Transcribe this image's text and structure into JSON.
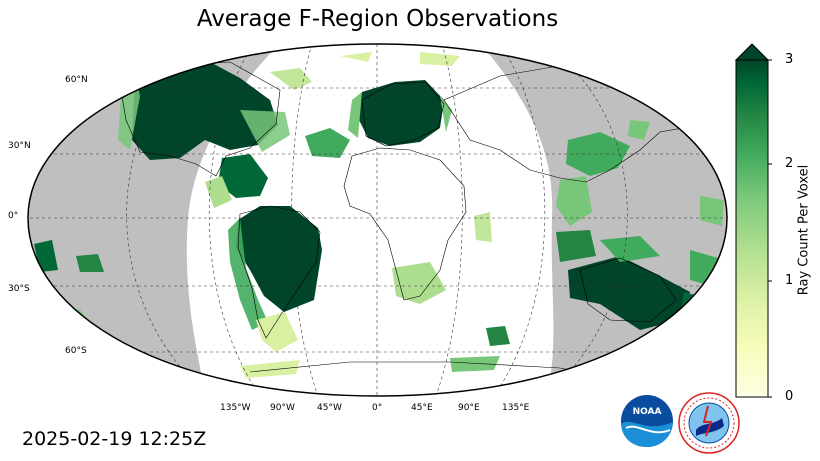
{
  "title": "Average F-Region Observations",
  "timestamp": "2025-02-19 12:25Z",
  "colorbar": {
    "label": "Ray Count Per Voxel",
    "ticks": [
      "0",
      "1",
      "2",
      "3"
    ],
    "min": 0,
    "max": 3,
    "extend": "max",
    "colormap": "YlGn"
  },
  "map": {
    "projection": "Robinson",
    "lat_labels": [
      "60°N",
      "30°N",
      "0°",
      "30°S",
      "60°S"
    ],
    "lon_labels": [
      "135°W",
      "90°W",
      "45°W",
      "0°",
      "45°E",
      "90°E",
      "135°E"
    ],
    "nighttime_shading_color": "#bfbfbf",
    "gridlines": true
  },
  "logos": {
    "noaa": "NOAA",
    "nws": "NATIONAL WEATHER SERVICE"
  },
  "colors": {
    "low": "#ffffe5",
    "mid": "#78c679",
    "high": "#004529"
  }
}
